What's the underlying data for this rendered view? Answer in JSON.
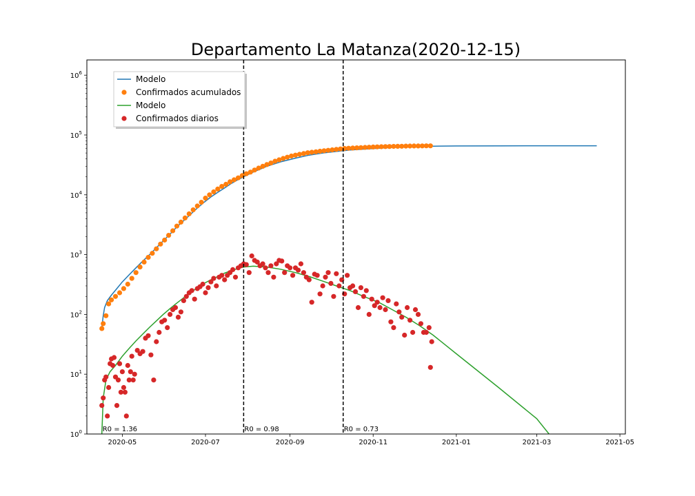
{
  "chart_data": {
    "type": "scatter",
    "title": "Departamento La Matanza(2020-12-15)",
    "xlabel": "",
    "ylabel": "",
    "yscale": "log",
    "ylim": [
      1,
      1800000
    ],
    "xlim": [
      "2020-04-05",
      "2021-05-05"
    ],
    "x_ticks": [
      "2020-05",
      "2020-07",
      "2020-09",
      "2020-11",
      "2021-01",
      "2021-03",
      "2021-05"
    ],
    "x_tick_dates": [
      "2020-05-01",
      "2020-07-01",
      "2020-09-01",
      "2020-11-01",
      "2021-01-01",
      "2021-03-01",
      "2021-05-01"
    ],
    "y_ticks": [
      {
        "value": 1,
        "base": "10",
        "exp": "0"
      },
      {
        "value": 10,
        "base": "10",
        "exp": "1"
      },
      {
        "value": 100,
        "base": "10",
        "exp": "2"
      },
      {
        "value": 1000,
        "base": "10",
        "exp": "3"
      },
      {
        "value": 10000,
        "base": "10",
        "exp": "4"
      },
      {
        "value": 100000,
        "base": "10",
        "exp": "5"
      },
      {
        "value": 1000000,
        "base": "10",
        "exp": "6"
      }
    ],
    "grid": false,
    "legend_placement": "upper-left",
    "legend": [
      {
        "label": "Modelo",
        "kind": "line",
        "color": "#1f77b4"
      },
      {
        "label": "Confirmados acumulados",
        "kind": "marker",
        "color": "#ff7f0e"
      },
      {
        "label": "Modelo",
        "kind": "line",
        "color": "#2ca02c"
      },
      {
        "label": "Confirmados diarios",
        "kind": "marker",
        "color": "#d62728"
      }
    ],
    "vlines": [
      {
        "date": "2020-07-29",
        "label": "R0 = 0.98"
      },
      {
        "date": "2020-10-10",
        "label": "R0 = 0.73"
      }
    ],
    "annotations": [
      {
        "date": "2020-04-16",
        "label": "R0 = 1.36"
      },
      {
        "date": "2020-07-29",
        "label": "R0 = 0.98"
      },
      {
        "date": "2020-10-10",
        "label": "R0 = 0.73"
      }
    ],
    "series": [
      {
        "name": "Modelo",
        "type": "line",
        "color": "#1f77b4",
        "x": [
          "2020-04-16",
          "2020-04-17",
          "2020-04-18",
          "2020-04-20",
          "2020-04-23",
          "2020-04-27",
          "2020-05-01",
          "2020-05-06",
          "2020-05-11",
          "2020-05-16",
          "2020-05-21",
          "2020-05-26",
          "2020-05-31",
          "2020-06-05",
          "2020-06-10",
          "2020-06-15",
          "2020-06-20",
          "2020-06-25",
          "2020-06-30",
          "2020-07-05",
          "2020-07-10",
          "2020-07-15",
          "2020-07-20",
          "2020-07-25",
          "2020-07-29",
          "2020-08-05",
          "2020-08-15",
          "2020-08-25",
          "2020-09-05",
          "2020-09-15",
          "2020-09-25",
          "2020-10-05",
          "2020-10-15",
          "2020-10-25",
          "2020-11-05",
          "2020-11-15",
          "2020-12-01",
          "2020-12-15",
          "2021-01-01",
          "2021-02-01",
          "2021-03-01",
          "2021-04-14"
        ],
        "y": [
          60,
          95,
          130,
          170,
          210,
          270,
          350,
          460,
          600,
          780,
          1000,
          1300,
          1700,
          2200,
          2900,
          3700,
          4700,
          6000,
          7500,
          9200,
          11000,
          13000,
          15500,
          18000,
          20000,
          24000,
          30000,
          35500,
          41000,
          46000,
          50000,
          53000,
          56000,
          58000,
          60000,
          62000,
          64000,
          65000,
          65500,
          65800,
          66000,
          66000
        ]
      },
      {
        "name": "Confirmados acumulados",
        "type": "scatter",
        "color": "#ff7f0e",
        "x": [
          "2020-04-16",
          "2020-04-17",
          "2020-04-19",
          "2020-04-21",
          "2020-04-23",
          "2020-04-26",
          "2020-04-29",
          "2020-05-02",
          "2020-05-05",
          "2020-05-08",
          "2020-05-11",
          "2020-05-14",
          "2020-05-17",
          "2020-05-20",
          "2020-05-23",
          "2020-05-26",
          "2020-05-29",
          "2020-06-01",
          "2020-06-04",
          "2020-06-07",
          "2020-06-10",
          "2020-06-13",
          "2020-06-16",
          "2020-06-19",
          "2020-06-22",
          "2020-06-25",
          "2020-06-28",
          "2020-07-01",
          "2020-07-04",
          "2020-07-07",
          "2020-07-10",
          "2020-07-13",
          "2020-07-16",
          "2020-07-19",
          "2020-07-22",
          "2020-07-25",
          "2020-07-28",
          "2020-07-31",
          "2020-08-03",
          "2020-08-06",
          "2020-08-09",
          "2020-08-12",
          "2020-08-15",
          "2020-08-18",
          "2020-08-21",
          "2020-08-24",
          "2020-08-27",
          "2020-08-30",
          "2020-09-02",
          "2020-09-05",
          "2020-09-08",
          "2020-09-11",
          "2020-09-14",
          "2020-09-17",
          "2020-09-20",
          "2020-09-23",
          "2020-09-26",
          "2020-09-29",
          "2020-10-02",
          "2020-10-05",
          "2020-10-08",
          "2020-10-11",
          "2020-10-14",
          "2020-10-17",
          "2020-10-20",
          "2020-10-23",
          "2020-10-26",
          "2020-10-29",
          "2020-11-01",
          "2020-11-04",
          "2020-11-07",
          "2020-11-10",
          "2020-11-13",
          "2020-11-16",
          "2020-11-19",
          "2020-11-22",
          "2020-11-25",
          "2020-11-28",
          "2020-12-01",
          "2020-12-04",
          "2020-12-07",
          "2020-12-10",
          "2020-12-13"
        ],
        "y": [
          58,
          70,
          95,
          150,
          175,
          200,
          230,
          270,
          320,
          400,
          500,
          620,
          750,
          900,
          1050,
          1250,
          1500,
          1750,
          2100,
          2500,
          3000,
          3500,
          4100,
          4800,
          5600,
          6500,
          7500,
          8800,
          10000,
          11200,
          12500,
          13800,
          15000,
          16500,
          17800,
          19200,
          21000,
          22500,
          24000,
          26000,
          28000,
          30000,
          32000,
          34000,
          36500,
          38500,
          40500,
          42500,
          44500,
          46000,
          47500,
          49000,
          50500,
          51500,
          52500,
          53500,
          54500,
          55500,
          56500,
          57500,
          58500,
          59500,
          60000,
          60500,
          61000,
          61500,
          62000,
          62500,
          63000,
          63300,
          63600,
          63900,
          64200,
          64500,
          64700,
          64900,
          65100,
          65300,
          65500,
          65600,
          65700,
          65800,
          65900
        ]
      },
      {
        "name": "Modelo",
        "type": "line",
        "color": "#2ca02c",
        "x": [
          "2020-04-16",
          "2020-04-17",
          "2020-04-19",
          "2020-04-22",
          "2020-04-26",
          "2020-05-01",
          "2020-05-06",
          "2020-05-11",
          "2020-05-16",
          "2020-05-21",
          "2020-05-26",
          "2020-05-31",
          "2020-06-05",
          "2020-06-10",
          "2020-06-15",
          "2020-06-20",
          "2020-06-25",
          "2020-06-30",
          "2020-07-05",
          "2020-07-10",
          "2020-07-15",
          "2020-07-20",
          "2020-07-25",
          "2020-07-29",
          "2020-08-05",
          "2020-08-15",
          "2020-08-25",
          "2020-09-05",
          "2020-09-15",
          "2020-09-25",
          "2020-10-05",
          "2020-10-15",
          "2020-10-25",
          "2020-11-05",
          "2020-11-15",
          "2020-11-25",
          "2020-12-05",
          "2020-12-15",
          "2021-01-01",
          "2021-02-01",
          "2021-03-01",
          "2021-03-10"
        ],
        "y": [
          1,
          4,
          8,
          11,
          14,
          20,
          27,
          36,
          47,
          61,
          78,
          100,
          125,
          155,
          190,
          230,
          280,
          330,
          380,
          430,
          490,
          540,
          590,
          620,
          640,
          620,
          570,
          500,
          430,
          360,
          300,
          250,
          200,
          160,
          120,
          90,
          65,
          45,
          22,
          6,
          1.8,
          1
        ]
      },
      {
        "name": "Confirmados diarios",
        "type": "scatter",
        "color": "#d62728",
        "x": [
          "2020-04-16",
          "2020-04-17",
          "2020-04-18",
          "2020-04-19",
          "2020-04-20",
          "2020-04-21",
          "2020-04-22",
          "2020-04-23",
          "2020-04-24",
          "2020-04-25",
          "2020-04-26",
          "2020-04-27",
          "2020-04-28",
          "2020-04-29",
          "2020-04-30",
          "2020-05-01",
          "2020-05-02",
          "2020-05-03",
          "2020-05-04",
          "2020-05-05",
          "2020-05-06",
          "2020-05-07",
          "2020-05-08",
          "2020-05-09",
          "2020-05-10",
          "2020-05-12",
          "2020-05-14",
          "2020-05-16",
          "2020-05-18",
          "2020-05-20",
          "2020-05-22",
          "2020-05-24",
          "2020-05-26",
          "2020-05-28",
          "2020-05-30",
          "2020-06-01",
          "2020-06-03",
          "2020-06-05",
          "2020-06-07",
          "2020-06-09",
          "2020-06-11",
          "2020-06-13",
          "2020-06-15",
          "2020-06-17",
          "2020-06-19",
          "2020-06-21",
          "2020-06-23",
          "2020-06-25",
          "2020-06-27",
          "2020-06-29",
          "2020-07-01",
          "2020-07-03",
          "2020-07-05",
          "2020-07-07",
          "2020-07-09",
          "2020-07-11",
          "2020-07-13",
          "2020-07-15",
          "2020-07-17",
          "2020-07-19",
          "2020-07-21",
          "2020-07-23",
          "2020-07-25",
          "2020-07-27",
          "2020-07-29",
          "2020-07-31",
          "2020-08-02",
          "2020-08-04",
          "2020-08-06",
          "2020-08-08",
          "2020-08-10",
          "2020-08-12",
          "2020-08-14",
          "2020-08-16",
          "2020-08-18",
          "2020-08-20",
          "2020-08-22",
          "2020-08-24",
          "2020-08-26",
          "2020-08-28",
          "2020-08-30",
          "2020-09-01",
          "2020-09-03",
          "2020-09-05",
          "2020-09-07",
          "2020-09-09",
          "2020-09-11",
          "2020-09-13",
          "2020-09-15",
          "2020-09-17",
          "2020-09-19",
          "2020-09-21",
          "2020-09-23",
          "2020-09-25",
          "2020-09-27",
          "2020-09-29",
          "2020-10-01",
          "2020-10-03",
          "2020-10-05",
          "2020-10-07",
          "2020-10-09",
          "2020-10-11",
          "2020-10-13",
          "2020-10-15",
          "2020-10-17",
          "2020-10-19",
          "2020-10-21",
          "2020-10-23",
          "2020-10-25",
          "2020-10-27",
          "2020-10-29",
          "2020-10-31",
          "2020-11-02",
          "2020-11-04",
          "2020-11-06",
          "2020-11-08",
          "2020-11-10",
          "2020-11-12",
          "2020-11-14",
          "2020-11-16",
          "2020-11-18",
          "2020-11-20",
          "2020-11-22",
          "2020-11-24",
          "2020-11-26",
          "2020-11-28",
          "2020-11-30",
          "2020-12-02",
          "2020-12-04",
          "2020-12-06",
          "2020-12-08",
          "2020-12-10",
          "2020-12-12",
          "2020-12-13",
          "2020-12-14"
        ],
        "y": [
          3,
          4,
          8,
          9,
          2,
          6,
          15,
          18,
          14,
          19,
          9,
          3,
          8,
          15,
          5,
          11,
          6,
          5,
          2,
          14,
          8,
          11,
          20,
          8,
          10,
          25,
          22,
          24,
          40,
          44,
          21,
          8,
          35,
          50,
          75,
          80,
          60,
          100,
          120,
          130,
          90,
          110,
          170,
          200,
          230,
          250,
          180,
          270,
          290,
          320,
          230,
          280,
          350,
          400,
          300,
          420,
          450,
          380,
          450,
          500,
          560,
          420,
          600,
          650,
          700,
          680,
          500,
          950,
          800,
          750,
          650,
          700,
          600,
          500,
          650,
          420,
          700,
          800,
          780,
          500,
          650,
          600,
          450,
          600,
          550,
          700,
          500,
          420,
          380,
          160,
          470,
          450,
          220,
          300,
          420,
          500,
          330,
          200,
          480,
          300,
          380,
          220,
          450,
          280,
          300,
          240,
          130,
          280,
          200,
          250,
          100,
          180,
          140,
          160,
          130,
          190,
          120,
          170,
          75,
          60,
          150,
          110,
          90,
          45,
          130,
          80,
          50,
          120,
          100,
          70,
          50,
          50,
          60,
          13,
          35
        ]
      }
    ]
  }
}
